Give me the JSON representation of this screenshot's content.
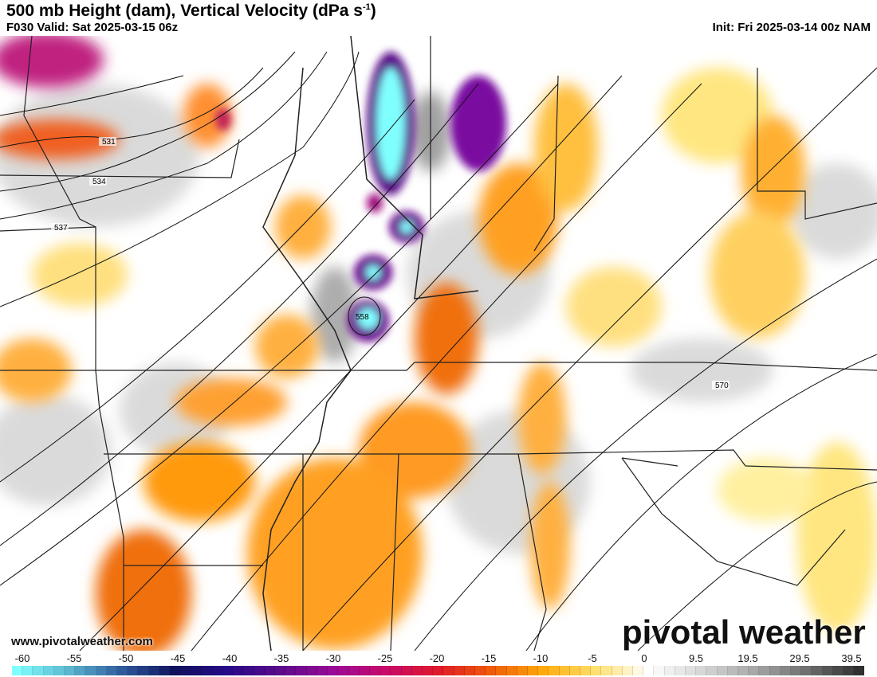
{
  "header": {
    "title": "500 mb Height (dam), Vertical Velocity (dPa s",
    "title_sup": "-1",
    "title_end": ")",
    "valid": "F030 Valid: Sat 2025-03-15 06z",
    "init": "Init: Fri 2025-03-14 00z NAM"
  },
  "contour_labels": [
    "531",
    "534",
    "537",
    "558",
    "570"
  ],
  "watermark": {
    "url": "www.pivotalweather.com",
    "logo": "pivotal weather"
  },
  "colorbar": {
    "labels": [
      "-60",
      "-55",
      "-50",
      "-45",
      "-40",
      "-35",
      "-30",
      "-25",
      "-20",
      "-15",
      "-10",
      "-5",
      "0",
      "9.5",
      "19.5",
      "29.5",
      "39.5"
    ],
    "colors": [
      "#80ffff",
      "#5bb6d0",
      "#2f5a9c",
      "#10115c",
      "#270a8a",
      "#5a0a8a",
      "#9a0a98",
      "#c80a6a",
      "#e01a2a",
      "#f05a08",
      "#ffaa08",
      "#ffe070",
      "#ffffff",
      "#d8d8d8",
      "#a8a8a8",
      "#707070",
      "#303030"
    ]
  }
}
